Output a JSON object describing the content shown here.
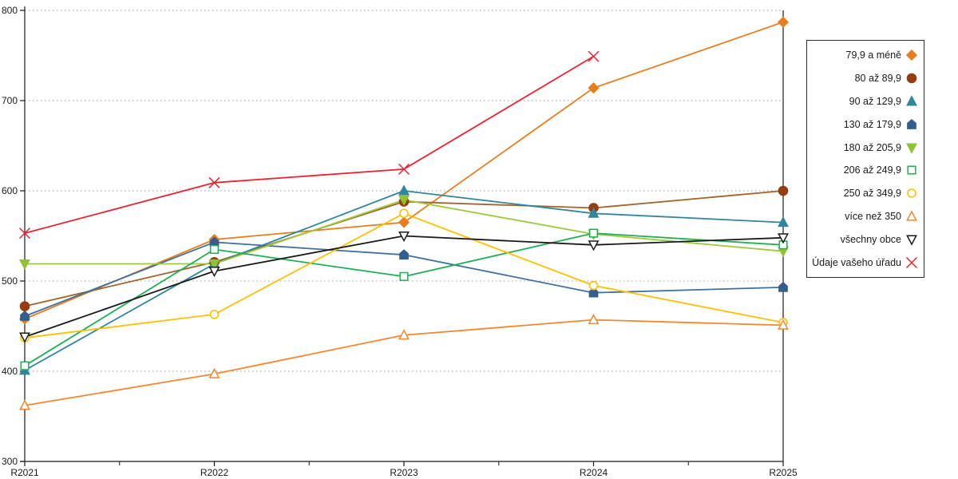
{
  "chart_data": {
    "type": "line",
    "title": "",
    "xlabel": "",
    "ylabel": "",
    "x_categories": [
      "R2021",
      "R2022",
      "R2023",
      "R2024",
      "R2025"
    ],
    "ylim": [
      300,
      800
    ],
    "yticks": [
      300,
      400,
      500,
      600,
      700,
      800
    ],
    "grid": "horizontal-dotted",
    "gridline_color": "#9a9a9a",
    "axis_color": "#1a1a1a",
    "legend_position": "right",
    "series": [
      {
        "name": "79,9 a méně",
        "color": "#E87D1E",
        "marker_color": "#E87D1E",
        "marker": "diamond",
        "filled": true,
        "values": [
          458,
          546,
          565,
          714,
          787
        ]
      },
      {
        "name": "80 až 89,9",
        "color": "#A3632B",
        "marker_color": "#963D0F",
        "marker": "circle",
        "filled": true,
        "values": [
          472,
          521,
          588,
          581,
          600
        ]
      },
      {
        "name": "90 až 129,9",
        "color": "#31859C",
        "marker_color": "#31859C",
        "marker": "triangle-up",
        "filled": true,
        "values": [
          401,
          519,
          600,
          575,
          565
        ]
      },
      {
        "name": "130 až 179,9",
        "color": "#41719C",
        "marker_color": "#355E8C",
        "marker": "pentagon",
        "filled": true,
        "values": [
          461,
          543,
          529,
          487,
          493
        ]
      },
      {
        "name": "180 až 205,9",
        "color": "#9CCB3C",
        "marker_color": "#8FC32F",
        "marker": "triangle-down",
        "filled": true,
        "values": [
          519,
          519,
          590,
          552,
          533
        ]
      },
      {
        "name": "206 až 249,9",
        "color": "#1FAF54",
        "marker_color": "#1FAF54",
        "marker": "square",
        "filled": false,
        "values": [
          406,
          535,
          505,
          553,
          540
        ]
      },
      {
        "name": "250 až 349,9",
        "color": "#FFC000",
        "marker_color": "#FFC000",
        "marker": "circle",
        "filled": false,
        "values": [
          437,
          463,
          575,
          495,
          454
        ]
      },
      {
        "name": "více než 350",
        "color": "#F8862D",
        "marker_color": "#F8862D",
        "marker": "triangle-up",
        "filled": false,
        "values": [
          362,
          397,
          440,
          457,
          451
        ]
      },
      {
        "name": "všechny obce",
        "color": "#1A1A1A",
        "marker_color": "#1A1A1A",
        "marker": "triangle-down",
        "filled": false,
        "values": [
          438,
          511,
          550,
          540,
          548
        ]
      },
      {
        "name": "Údaje vašeho úřadu",
        "color": "#EA2331",
        "marker_color": "#EA2331",
        "marker": "x",
        "filled": false,
        "values": [
          553,
          609,
          624,
          749,
          null
        ]
      }
    ]
  }
}
